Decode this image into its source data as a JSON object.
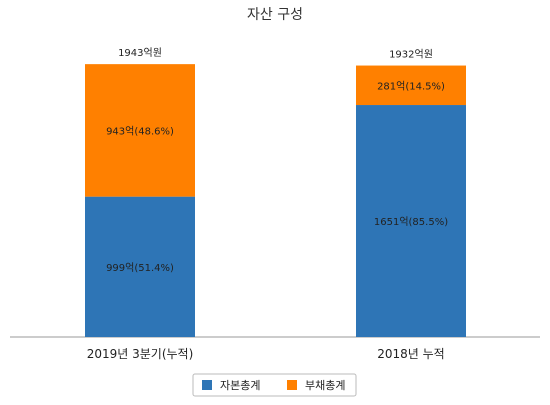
{
  "chart_data": {
    "type": "bar",
    "stacked": true,
    "title": "자산 구성",
    "categories": [
      "2019년 3분기(누적)",
      "2018년 누적"
    ],
    "series": [
      {
        "name": "자본총계",
        "color": "#2e75b6",
        "values": [
          999,
          1651
        ],
        "labels": [
          "999억(51.4%)",
          "1651억(85.5%)"
        ]
      },
      {
        "name": "부채총계",
        "color": "#ff8000",
        "values": [
          943,
          281
        ],
        "labels": [
          "943억(48.6%)",
          "281억(14.5%)"
        ]
      }
    ],
    "totals": [
      "1943억원",
      "1932억원"
    ],
    "total_values": [
      1943,
      1932
    ],
    "ylim": [
      0,
      1943
    ],
    "grid": false,
    "legend": "bottom"
  }
}
